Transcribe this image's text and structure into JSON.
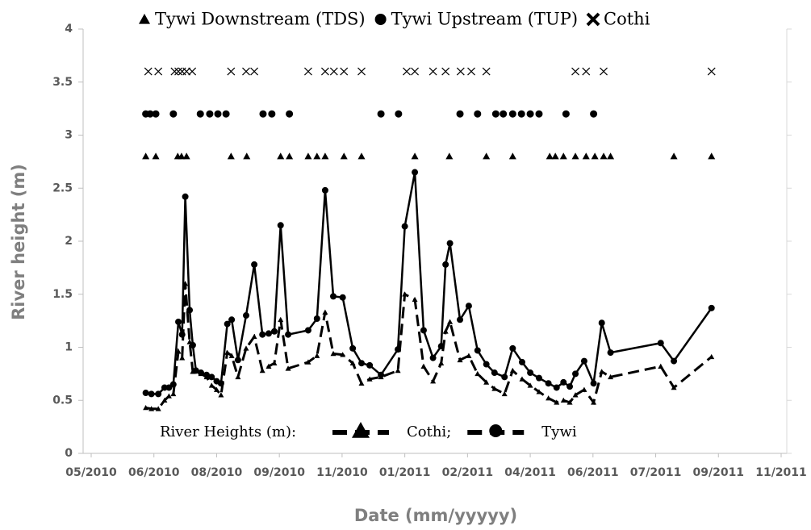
{
  "chart_data": {
    "type": "line",
    "y_label": "River height (m)",
    "x_label": "Date (mm/yyyyy)",
    "legend_title": "River Heights (m):",
    "xlim": [
      0,
      11
    ],
    "ylim": [
      0,
      4
    ],
    "xticks": [
      {
        "value": 0,
        "label": "05/2010"
      },
      {
        "value": 1,
        "label": "06/2010"
      },
      {
        "value": 2,
        "label": "08/2010"
      },
      {
        "value": 3,
        "label": "09/2010"
      },
      {
        "value": 4,
        "label": "11/2010"
      },
      {
        "value": 5,
        "label": "01/2011"
      },
      {
        "value": 6,
        "label": "02/2011"
      },
      {
        "value": 7,
        "label": "04/2011"
      },
      {
        "value": 8,
        "label": "06/2011"
      },
      {
        "value": 9,
        "label": "07/2011"
      },
      {
        "value": 10,
        "label": "09/2011"
      },
      {
        "value": 11,
        "label": "11/2011"
      }
    ],
    "yticks": [
      0,
      0.5,
      1,
      1.5,
      2,
      2.5,
      3,
      3.5,
      4
    ],
    "grid": false,
    "series": [
      {
        "name": "Cothi;",
        "color": "#000000",
        "line_style": "dashed",
        "marker": "triangle",
        "legend": "inner",
        "x": [
          0.87,
          0.96,
          1.07,
          1.17,
          1.24,
          1.31,
          1.39,
          1.45,
          1.5,
          1.57,
          1.62,
          1.75,
          1.84,
          1.92,
          2.0,
          2.07,
          2.17,
          2.24,
          2.34,
          2.47,
          2.6,
          2.73,
          2.83,
          2.92,
          3.02,
          3.14,
          3.46,
          3.6,
          3.73,
          3.86,
          4.01,
          4.17,
          4.31,
          4.44,
          4.62,
          4.89,
          5.0,
          5.16,
          5.3,
          5.45,
          5.58,
          5.65,
          5.72,
          5.88,
          6.02,
          6.16,
          6.3,
          6.43,
          6.59,
          6.72,
          6.87,
          7.0,
          7.14,
          7.29,
          7.42,
          7.53,
          7.63,
          7.72,
          7.86,
          8.01,
          8.14,
          8.28,
          9.08,
          9.29,
          9.89
        ],
        "values": [
          0.43,
          0.42,
          0.42,
          0.5,
          0.54,
          0.56,
          0.96,
          0.9,
          1.6,
          1.05,
          0.77,
          0.75,
          0.72,
          0.64,
          0.6,
          0.55,
          0.95,
          0.92,
          0.72,
          0.99,
          1.1,
          0.78,
          0.82,
          0.85,
          1.26,
          0.8,
          0.86,
          0.92,
          1.33,
          0.94,
          0.93,
          0.85,
          0.66,
          0.7,
          0.72,
          0.78,
          1.5,
          1.45,
          0.82,
          0.68,
          0.85,
          1.15,
          1.24,
          0.88,
          0.92,
          0.75,
          0.67,
          0.61,
          0.56,
          0.78,
          0.7,
          0.64,
          0.58,
          0.52,
          0.48,
          0.5,
          0.48,
          0.55,
          0.6,
          0.48,
          0.77,
          0.72,
          0.82,
          0.62,
          0.91
        ]
      },
      {
        "name": "Tywi",
        "color": "#000000",
        "line_style": "solid",
        "marker": "circle",
        "legend": "inner",
        "x": [
          0.87,
          0.96,
          1.07,
          1.17,
          1.24,
          1.31,
          1.39,
          1.45,
          1.5,
          1.57,
          1.62,
          1.67,
          1.75,
          1.84,
          1.92,
          2.0,
          2.07,
          2.17,
          2.24,
          2.34,
          2.47,
          2.6,
          2.73,
          2.83,
          2.92,
          3.02,
          3.14,
          3.46,
          3.6,
          3.73,
          3.86,
          4.01,
          4.17,
          4.31,
          4.44,
          4.62,
          4.89,
          5.0,
          5.16,
          5.3,
          5.45,
          5.58,
          5.65,
          5.72,
          5.88,
          6.02,
          6.16,
          6.3,
          6.43,
          6.59,
          6.72,
          6.87,
          7.0,
          7.14,
          7.29,
          7.42,
          7.53,
          7.63,
          7.72,
          7.86,
          8.01,
          8.14,
          8.28,
          9.08,
          9.29,
          9.89
        ],
        "values": [
          0.57,
          0.56,
          0.56,
          0.62,
          0.62,
          0.65,
          1.24,
          1.12,
          2.42,
          1.35,
          1.02,
          0.78,
          0.76,
          0.74,
          0.72,
          0.68,
          0.66,
          1.22,
          1.26,
          0.88,
          1.3,
          1.78,
          1.12,
          1.13,
          1.15,
          2.15,
          1.12,
          1.16,
          1.27,
          2.48,
          1.48,
          1.47,
          0.99,
          0.85,
          0.83,
          0.74,
          0.98,
          2.14,
          2.65,
          1.16,
          0.9,
          1.01,
          1.78,
          1.98,
          1.26,
          1.39,
          0.97,
          0.84,
          0.76,
          0.72,
          0.99,
          0.86,
          0.76,
          0.71,
          0.66,
          0.62,
          0.67,
          0.63,
          0.75,
          0.87,
          0.66,
          1.23,
          0.95,
          1.04,
          0.87,
          1.37
        ]
      },
      {
        "name": "Tywi Downstream (TDS)",
        "color": "#000000",
        "line_style": "none",
        "marker": "triangle",
        "legend": "top",
        "x": [
          0.87,
          1.03,
          1.38,
          1.44,
          1.52,
          2.23,
          2.48,
          3.02,
          3.16,
          3.46,
          3.6,
          3.73,
          4.03,
          4.31,
          5.16,
          5.71,
          6.3,
          6.72,
          7.31,
          7.4,
          7.53,
          7.72,
          7.89,
          8.03,
          8.17,
          8.28,
          9.29,
          9.89
        ],
        "values": [
          2.8,
          2.8,
          2.8,
          2.8,
          2.8,
          2.8,
          2.8,
          2.8,
          2.8,
          2.8,
          2.8,
          2.8,
          2.8,
          2.8,
          2.8,
          2.8,
          2.8,
          2.8,
          2.8,
          2.8,
          2.8,
          2.8,
          2.8,
          2.8,
          2.8,
          2.8,
          2.8,
          2.8
        ]
      },
      {
        "name": "Tywi Upstream (TUP)",
        "color": "#000000",
        "line_style": "none",
        "marker": "circle",
        "legend": "top",
        "x": [
          0.87,
          0.94,
          1.03,
          1.31,
          1.74,
          1.89,
          2.02,
          2.15,
          2.74,
          2.88,
          3.16,
          4.62,
          4.9,
          5.88,
          6.16,
          6.45,
          6.57,
          6.72,
          6.86,
          7.0,
          7.14,
          7.57,
          8.01
        ],
        "values": [
          3.2,
          3.2,
          3.2,
          3.2,
          3.2,
          3.2,
          3.2,
          3.2,
          3.2,
          3.2,
          3.2,
          3.2,
          3.2,
          3.2,
          3.2,
          3.2,
          3.2,
          3.2,
          3.2,
          3.2,
          3.2,
          3.2,
          3.2
        ]
      },
      {
        "name": "Cothi",
        "color": "#000000",
        "line_style": "none",
        "marker": "cross",
        "legend": "top",
        "x": [
          0.91,
          1.07,
          1.33,
          1.39,
          1.45,
          1.52,
          1.61,
          2.23,
          2.47,
          2.6,
          3.46,
          3.73,
          3.87,
          4.03,
          4.31,
          5.03,
          5.16,
          5.45,
          5.65,
          5.89,
          6.06,
          6.3,
          7.72,
          7.89,
          8.17,
          9.89
        ],
        "values": [
          3.6,
          3.6,
          3.6,
          3.6,
          3.6,
          3.6,
          3.6,
          3.6,
          3.6,
          3.6,
          3.6,
          3.6,
          3.6,
          3.6,
          3.6,
          3.6,
          3.6,
          3.6,
          3.6,
          3.6,
          3.6,
          3.6,
          3.6,
          3.6,
          3.6,
          3.6
        ]
      }
    ]
  }
}
